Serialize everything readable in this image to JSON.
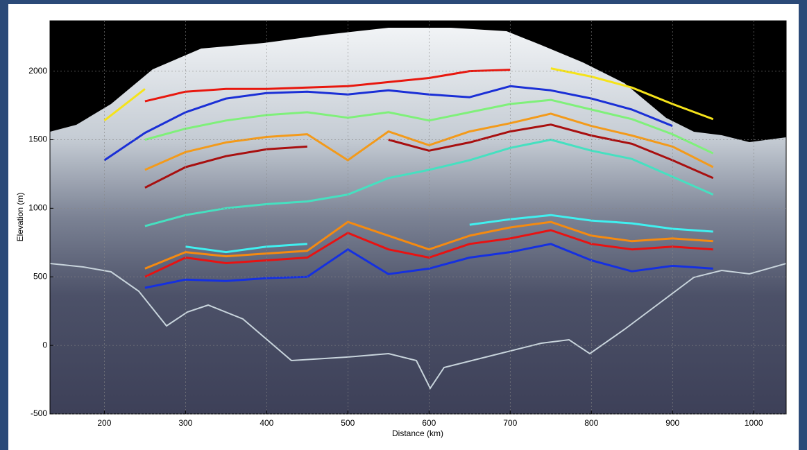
{
  "chart_data": {
    "type": "line",
    "xlabel": "Distance (km)",
    "ylabel": "Elevation (m)",
    "x": [
      150,
      200,
      250,
      300,
      350,
      400,
      450,
      500,
      550,
      600,
      650,
      700,
      750,
      800,
      850,
      900,
      950,
      1000
    ],
    "xlim": [
      133,
      1040
    ],
    "ylim": [
      -500,
      2367
    ],
    "xticks": [
      200,
      300,
      400,
      500,
      600,
      700,
      800,
      900,
      1000
    ],
    "yticks": [
      -500,
      0,
      500,
      1000,
      1500,
      2000
    ],
    "grid": true,
    "series": [
      {
        "color": "#f5e31a",
        "values": [
          null,
          1640,
          1870,
          null,
          null,
          null,
          null,
          null,
          null,
          null,
          null,
          null,
          2020,
          1960,
          1880,
          1760,
          1650,
          null
        ]
      },
      {
        "color": "#e8170e",
        "values": [
          null,
          null,
          1780,
          1850,
          1870,
          1870,
          1880,
          1890,
          1920,
          1950,
          2000,
          2010,
          null,
          null,
          null,
          null,
          null,
          null
        ]
      },
      {
        "color": "#1a2fd6",
        "values": [
          null,
          1350,
          1550,
          1700,
          1800,
          1840,
          1850,
          1830,
          1860,
          1830,
          1810,
          1890,
          1860,
          1800,
          1720,
          1600,
          null,
          null
        ]
      },
      {
        "color": "#7ff07a",
        "values": [
          null,
          null,
          1500,
          1580,
          1640,
          1680,
          1700,
          1660,
          1700,
          1640,
          1700,
          1760,
          1790,
          1720,
          1650,
          1540,
          1400,
          null
        ]
      },
      {
        "color": "#f39a1a",
        "values": [
          null,
          null,
          1280,
          1410,
          1480,
          1520,
          1540,
          1350,
          1560,
          1460,
          1560,
          1620,
          1690,
          1600,
          1530,
          1450,
          1300,
          null
        ]
      },
      {
        "color": "#a80f0f",
        "values": [
          null,
          null,
          1150,
          1300,
          1380,
          1430,
          1450,
          null,
          1500,
          1420,
          1480,
          1560,
          1610,
          1530,
          1470,
          1350,
          1220,
          null
        ]
      },
      {
        "color": "#46e0c0",
        "values": [
          null,
          null,
          870,
          950,
          1000,
          1030,
          1050,
          1100,
          1220,
          1280,
          1350,
          1440,
          1500,
          1420,
          1360,
          1230,
          1100,
          null
        ]
      },
      {
        "color": "#40f0f0",
        "values": [
          null,
          null,
          null,
          720,
          680,
          720,
          740,
          null,
          null,
          null,
          880,
          920,
          950,
          910,
          890,
          850,
          830,
          null
        ]
      },
      {
        "color": "#f58a10",
        "values": [
          null,
          null,
          560,
          680,
          650,
          670,
          690,
          900,
          800,
          700,
          800,
          860,
          900,
          800,
          760,
          780,
          760,
          null
        ]
      },
      {
        "color": "#e81212",
        "values": [
          null,
          null,
          500,
          640,
          600,
          620,
          640,
          820,
          700,
          640,
          740,
          780,
          840,
          740,
          700,
          720,
          700,
          null
        ]
      },
      {
        "color": "#1530e0",
        "values": [
          null,
          null,
          420,
          480,
          470,
          490,
          500,
          700,
          520,
          560,
          640,
          680,
          740,
          620,
          540,
          580,
          560,
          null
        ]
      }
    ]
  }
}
